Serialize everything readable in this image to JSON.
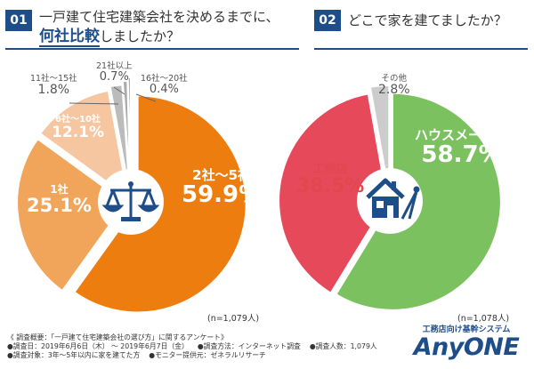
{
  "q1": {
    "number": "01",
    "text_line1": "一戸建て住宅建築会社を決めるまでに、",
    "text_emph": "何社比較",
    "text_tail": "しましたか？",
    "sample_size": "(n=1,079人)"
  },
  "q2": {
    "number": "02",
    "text": "どこで家を建てましたか？",
    "sample_size": "(n=1,078人)"
  },
  "chart_data": [
    {
      "type": "pie",
      "categories": [
        "2社～5社",
        "1社",
        "6社～10社",
        "11社～15社",
        "21社以上",
        "16社～20社"
      ],
      "values": [
        59.9,
        25.1,
        12.1,
        1.8,
        0.7,
        0.4
      ],
      "labels": [
        "59.9%",
        "25.1%",
        "12.1%",
        "1.8%",
        "0.7%",
        "0.4%"
      ],
      "colors": [
        "#ee7d10",
        "#f0a55a",
        "#f6c6a0",
        "#bbbbbb",
        "#aaaaaa",
        "#999999"
      ]
    },
    {
      "type": "pie",
      "categories": [
        "ハウスメーカー",
        "工務店",
        "その他"
      ],
      "values": [
        58.7,
        38.5,
        2.8
      ],
      "labels": [
        "58.7%",
        "38.5%",
        "2.8%"
      ],
      "colors": [
        "#7cc160",
        "#e6495a",
        "#cccccc"
      ]
    }
  ],
  "footer": {
    "overview": "《 調査概要：「一戸建て住宅建築会社の選び方」に関するアンケート》",
    "date": "●調査日：2019年6月6日（木） ～ 2019年6月7日（金）",
    "method": "●調査方法：インターネット調査",
    "people": "●調査人数：1,079人",
    "target": "●調査対象：3年～5年以内に家を建てた方",
    "provider": "●モニター提供元：ゼネラルリサーチ"
  },
  "brand": {
    "tagline": "工務店向け基幹システム",
    "logo": "AnyONE",
    "color": "#1e4e8a"
  },
  "icons": [
    "scales-icon",
    "house-pencil-icon"
  ]
}
